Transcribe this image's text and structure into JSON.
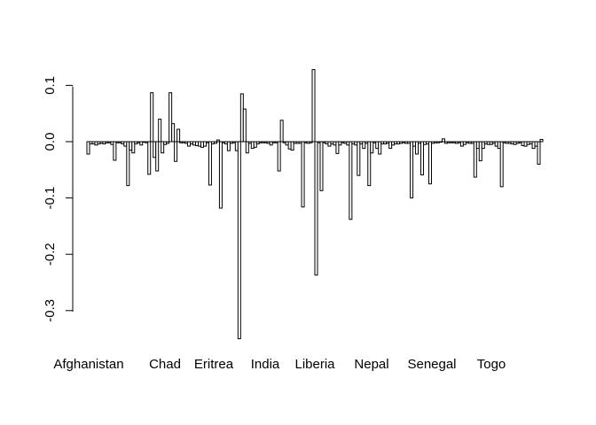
{
  "chart_data": {
    "type": "bar",
    "y_range": [
      -0.36,
      0.14
    ],
    "y_ticks": [
      -0.3,
      -0.2,
      -0.1,
      0.0,
      0.1
    ],
    "y_tick_labels": [
      "-0.3",
      "-0.2",
      "-0.1",
      "0.0",
      "0.1"
    ],
    "x_group_labels": [
      "Afghanistan",
      "Chad",
      "Eritrea",
      "India",
      "Liberia",
      "Nepal",
      "Senegal",
      "Togo"
    ],
    "values": [
      -0.022,
      -0.004,
      -0.004,
      -0.006,
      -0.004,
      -0.003,
      -0.004,
      -0.002,
      -0.002,
      -0.005,
      -0.033,
      -0.002,
      -0.002,
      -0.004,
      -0.008,
      -0.078,
      -0.015,
      -0.02,
      -0.004,
      -0.002,
      -0.006,
      0.0,
      -0.002,
      -0.058,
      0.087,
      -0.028,
      -0.052,
      0.04,
      -0.02,
      -0.005,
      -0.003,
      0.087,
      0.032,
      -0.035,
      0.022,
      -0.002,
      -0.002,
      -0.003,
      -0.008,
      -0.004,
      -0.006,
      -0.007,
      -0.008,
      -0.01,
      -0.008,
      -0.002,
      -0.077,
      -0.004,
      -0.003,
      0.003,
      -0.118,
      -0.002,
      -0.004,
      -0.016,
      -0.003,
      -0.002,
      -0.016,
      -0.35,
      0.085,
      0.058,
      -0.02,
      -0.003,
      -0.012,
      -0.01,
      -0.004,
      -0.002,
      -0.002,
      -0.002,
      -0.003,
      -0.006,
      -0.002,
      -0.002,
      -0.052,
      0.038,
      -0.002,
      -0.006,
      -0.013,
      -0.015,
      -0.003,
      -0.003,
      -0.003,
      -0.116,
      -0.002,
      -0.003,
      -0.002,
      0.128,
      -0.237,
      -0.002,
      -0.087,
      -0.002,
      -0.004,
      -0.008,
      -0.004,
      -0.006,
      -0.021,
      -0.006,
      -0.002,
      -0.003,
      -0.006,
      -0.138,
      -0.004,
      -0.006,
      -0.06,
      -0.004,
      -0.012,
      -0.003,
      -0.078,
      -0.02,
      -0.002,
      -0.012,
      -0.022,
      -0.004,
      -0.004,
      -0.003,
      -0.012,
      -0.006,
      -0.004,
      -0.004,
      -0.003,
      -0.002,
      -0.003,
      -0.003,
      -0.1,
      -0.008,
      -0.022,
      -0.003,
      -0.059,
      -0.005,
      -0.004,
      -0.075,
      -0.003,
      -0.002,
      -0.002,
      0.0,
      0.005,
      -0.003,
      -0.002,
      -0.002,
      -0.002,
      -0.003,
      -0.002,
      -0.008,
      -0.005,
      -0.002,
      -0.003,
      -0.003,
      -0.063,
      -0.012,
      -0.034,
      -0.012,
      -0.004,
      -0.005,
      -0.005,
      -0.003,
      -0.008,
      -0.012,
      -0.08,
      -0.002,
      -0.003,
      -0.003,
      -0.004,
      -0.005,
      -0.003,
      -0.002,
      -0.007,
      -0.008,
      -0.005,
      -0.004,
      -0.012,
      -0.008,
      -0.04,
      0.004
    ],
    "grid": false,
    "legend": "none"
  }
}
